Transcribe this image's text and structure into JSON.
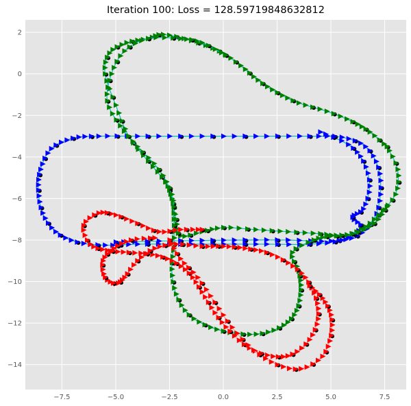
{
  "chart_data": {
    "type": "line",
    "title": "Iteration 100: Loss = 128.59719848632812",
    "xlabel": "",
    "ylabel": "",
    "xlim": [
      -9.2,
      8.5
    ],
    "ylim": [
      -15.2,
      2.6
    ],
    "xticks": [
      -7.5,
      -5.0,
      -2.5,
      0.0,
      2.5,
      5.0,
      7.5
    ],
    "yticks": [
      2,
      0,
      -2,
      -4,
      -6,
      -8,
      -10,
      -12,
      -14
    ],
    "xtick_labels": [
      "−7.5",
      "−5.0",
      "−2.5",
      "0.0",
      "2.5",
      "5.0",
      "7.5"
    ],
    "ytick_labels": [
      "2",
      "0",
      "−2",
      "−4",
      "−6",
      "−8",
      "−10",
      "−12",
      "−14"
    ],
    "grid": true,
    "background": "#e5e5e5",
    "grid_color": "#ffffff",
    "series": [
      {
        "color": "#0000ff",
        "line_color": "#00bfbf",
        "points": [
          [
            -5.0,
            -8.1
          ],
          [
            -3.0,
            -8.05
          ],
          [
            -1.0,
            -8.02
          ],
          [
            1.0,
            -8.0
          ],
          [
            3.0,
            -8.0
          ],
          [
            5.0,
            -8.05
          ],
          [
            6.2,
            -7.8
          ],
          [
            7.0,
            -7.0
          ],
          [
            7.3,
            -5.8
          ],
          [
            7.2,
            -4.5
          ],
          [
            6.6,
            -3.5
          ],
          [
            5.5,
            -3.05
          ],
          [
            4.0,
            -3.0
          ],
          [
            2.0,
            -3.0
          ],
          [
            0.0,
            -3.0
          ],
          [
            -2.0,
            -3.0
          ],
          [
            -4.0,
            -3.0
          ],
          [
            -5.8,
            -3.0
          ],
          [
            -7.0,
            -3.1
          ],
          [
            -8.0,
            -3.6
          ],
          [
            -8.5,
            -4.6
          ],
          [
            -8.6,
            -5.6
          ],
          [
            -8.4,
            -6.7
          ],
          [
            -7.8,
            -7.6
          ],
          [
            -6.8,
            -8.1
          ],
          [
            -5.5,
            -8.25
          ],
          [
            -4.0,
            -8.2
          ],
          [
            -2.0,
            -8.2
          ],
          [
            0.0,
            -8.2
          ],
          [
            2.0,
            -8.2
          ],
          [
            4.0,
            -8.2
          ],
          [
            5.5,
            -8.0
          ],
          [
            6.4,
            -7.4
          ],
          [
            6.0,
            -6.9
          ],
          [
            6.5,
            -6.5
          ],
          [
            6.8,
            -5.4
          ],
          [
            6.5,
            -4.2
          ],
          [
            5.8,
            -3.4
          ],
          [
            4.5,
            -2.8
          ]
        ]
      },
      {
        "color": "#008000",
        "line_color": "#00bfbf",
        "points": [
          [
            7.6,
            -3.5
          ],
          [
            8.1,
            -4.6
          ],
          [
            8.0,
            -5.8
          ],
          [
            7.2,
            -6.8
          ],
          [
            6.4,
            -7.5
          ],
          [
            5.5,
            -7.8
          ],
          [
            4.5,
            -7.7
          ],
          [
            3.0,
            -7.6
          ],
          [
            1.5,
            -7.5
          ],
          [
            0.0,
            -7.4
          ],
          [
            -1.0,
            -7.6
          ],
          [
            -2.0,
            -7.8
          ],
          [
            -2.2,
            -7.0
          ],
          [
            -2.4,
            -6.0
          ],
          [
            -2.7,
            -5.2
          ],
          [
            -3.5,
            -4.2
          ],
          [
            -4.4,
            -3.0
          ],
          [
            -5.0,
            -1.5
          ],
          [
            -5.5,
            0.0
          ],
          [
            -5.3,
            1.0
          ],
          [
            -4.5,
            1.5
          ],
          [
            -3.5,
            1.7
          ],
          [
            -2.8,
            1.9
          ],
          [
            -1.5,
            1.6
          ],
          [
            -0.2,
            1.1
          ],
          [
            0.8,
            0.4
          ],
          [
            1.6,
            -0.3
          ],
          [
            2.5,
            -0.9
          ],
          [
            3.5,
            -1.4
          ],
          [
            4.8,
            -1.8
          ],
          [
            6.0,
            -2.3
          ],
          [
            6.8,
            -2.8
          ],
          [
            7.6,
            -3.5
          ]
        ]
      },
      {
        "color": "#008000",
        "line_color": "#00bfbf",
        "points": [
          [
            0.1,
            0.9
          ],
          [
            -1.0,
            1.5
          ],
          [
            -2.0,
            1.7
          ],
          [
            -3.5,
            1.7
          ],
          [
            -4.6,
            1.1
          ],
          [
            -5.2,
            0.0
          ],
          [
            -5.4,
            -1.3
          ],
          [
            -4.8,
            -2.5
          ],
          [
            -4.0,
            -3.5
          ],
          [
            -3.0,
            -4.6
          ],
          [
            -2.4,
            -5.8
          ],
          [
            -2.3,
            -7.0
          ],
          [
            -2.3,
            -8.2
          ],
          [
            -2.4,
            -9.4
          ],
          [
            -2.2,
            -10.6
          ],
          [
            -1.6,
            -11.6
          ],
          [
            -0.6,
            -12.2
          ],
          [
            0.6,
            -12.5
          ],
          [
            1.8,
            -12.5
          ],
          [
            2.8,
            -12.1
          ],
          [
            3.4,
            -11.4
          ],
          [
            3.6,
            -10.4
          ],
          [
            3.5,
            -9.5
          ],
          [
            3.2,
            -8.6
          ],
          [
            4.2,
            -8.0
          ],
          [
            5.0,
            -7.8
          ],
          [
            6.0,
            -7.7
          ],
          [
            7.0,
            -7.2
          ],
          [
            7.6,
            -6.4
          ]
        ]
      },
      {
        "color": "#ff0000",
        "line_color": "#ff9999",
        "points": [
          [
            -1.0,
            -7.5
          ],
          [
            -2.0,
            -7.5
          ],
          [
            -3.0,
            -7.6
          ],
          [
            -4.0,
            -7.2
          ],
          [
            -5.0,
            -6.8
          ],
          [
            -5.8,
            -6.7
          ],
          [
            -6.5,
            -7.3
          ],
          [
            -6.2,
            -8.2
          ],
          [
            -5.4,
            -8.5
          ],
          [
            -4.4,
            -8.6
          ],
          [
            -3.3,
            -8.7
          ],
          [
            -2.4,
            -9.0
          ],
          [
            -1.6,
            -9.6
          ],
          [
            -1.0,
            -10.5
          ],
          [
            -0.4,
            -11.5
          ],
          [
            0.3,
            -12.4
          ],
          [
            1.2,
            -13.2
          ],
          [
            2.3,
            -13.6
          ],
          [
            3.2,
            -13.5
          ],
          [
            4.0,
            -12.8
          ],
          [
            4.4,
            -11.8
          ],
          [
            4.3,
            -10.8
          ],
          [
            3.8,
            -9.8
          ],
          [
            3.0,
            -9.1
          ],
          [
            2.0,
            -8.6
          ],
          [
            1.0,
            -8.4
          ],
          [
            0.0,
            -8.3
          ],
          [
            -1.0,
            -8.3
          ],
          [
            -2.2,
            -8.2
          ],
          [
            -3.2,
            -8.4
          ],
          [
            -4.0,
            -9.0
          ],
          [
            -4.6,
            -9.8
          ],
          [
            -5.0,
            -10.1
          ],
          [
            -5.5,
            -9.8
          ],
          [
            -5.6,
            -9.0
          ],
          [
            -5.1,
            -8.4
          ],
          [
            -4.3,
            -8.0
          ],
          [
            -3.2,
            -7.9
          ]
        ]
      },
      {
        "color": "#ff0000",
        "line_color": "#ff9999",
        "points": [
          [
            -2.5,
            -8.0
          ],
          [
            -2.0,
            -8.9
          ],
          [
            -1.2,
            -9.8
          ],
          [
            -0.4,
            -11.0
          ],
          [
            0.4,
            -12.2
          ],
          [
            1.4,
            -13.3
          ],
          [
            2.5,
            -14.0
          ],
          [
            3.6,
            -14.2
          ],
          [
            4.6,
            -13.6
          ],
          [
            5.0,
            -12.6
          ],
          [
            5.0,
            -11.6
          ],
          [
            4.6,
            -10.8
          ],
          [
            4.0,
            -10.2
          ]
        ]
      }
    ]
  }
}
